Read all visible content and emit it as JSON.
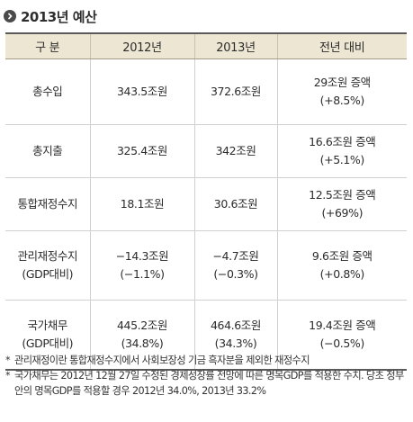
{
  "title": "2013년 예산",
  "table": {
    "headers": [
      "구 분",
      "2012년",
      "2013년",
      "전년 대비"
    ],
    "rows": [
      {
        "label": [
          "총수입"
        ],
        "y2012": [
          "343.5조원"
        ],
        "y2013": [
          "372.6조원"
        ],
        "change": [
          "29조원 증액",
          "(+8.5%)"
        ]
      },
      {
        "label": [
          "총지출"
        ],
        "y2012": [
          "325.4조원"
        ],
        "y2013": [
          "342조원"
        ],
        "change": [
          "16.6조원 증액",
          "(+5.1%)"
        ]
      },
      {
        "label": [
          "통합재정수지"
        ],
        "y2012": [
          "18.1조원"
        ],
        "y2013": [
          "30.6조원"
        ],
        "change": [
          "12.5조원 증액",
          "(+69%)"
        ]
      },
      {
        "label": [
          "관리재정수지",
          "(GDP대비)"
        ],
        "y2012": [
          "−14.3조원",
          "(−1.1%)"
        ],
        "y2013": [
          "−4.7조원",
          "(−0.3%)"
        ],
        "change": [
          "9.6조원 증액",
          "(+0.8%)"
        ]
      },
      {
        "label": [
          "국가채무",
          "(GDP대비)"
        ],
        "y2012": [
          "445.2조원",
          "(34.8%)"
        ],
        "y2013": [
          "464.6조원",
          "(34.3%)"
        ],
        "change": [
          "19.4조원 증액",
          "(−0.5%)"
        ]
      }
    ]
  },
  "notes": [
    {
      "mark": "*",
      "text": "관리재정이란 통합재정수지에서 사회보장성 기금 흑자분을 제외한 재정수지"
    },
    {
      "mark": "*",
      "text": "국가채무는 2012년 12월 27일 수정된 경제성장률 전망에 따른 명목GDP를 적용한 수치. 당초 정부안의 명목GDP를 적용할 경우 2012년 34.0%, 2013년 33.2%"
    }
  ],
  "icons": {
    "title_marker": "chevron-right-circle-icon"
  },
  "colors": {
    "header_bg": "#ede6d3",
    "rule": "#5a5a5a",
    "title_icon_bg": "#4a4a4a"
  }
}
